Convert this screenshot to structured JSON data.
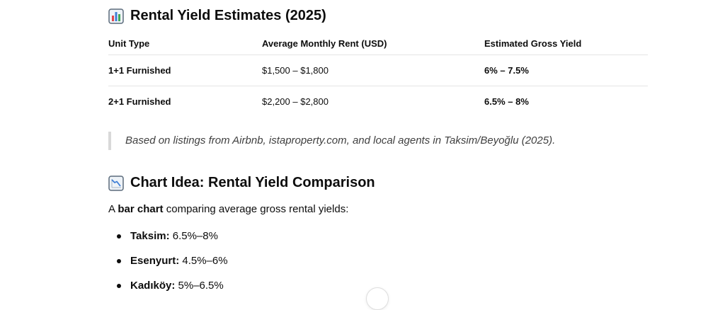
{
  "section1": {
    "title": "Rental Yield Estimates (2025)",
    "icon": "bar-chart-emoji-icon"
  },
  "table": {
    "headers": [
      "Unit Type",
      "Average Monthly Rent (USD)",
      "Estimated Gross Yield"
    ],
    "rows": [
      {
        "unit": "1+1 Furnished",
        "rent": "$1,500 – $1,800",
        "yield": "6% – 7.5%"
      },
      {
        "unit": "2+1 Furnished",
        "rent": "$2,200 – $2,800",
        "yield": "6.5% – 8%"
      }
    ]
  },
  "note": "Based on listings from Airbnb, istaproperty.com, and local agents in Taksim/Beyoğlu (2025).",
  "section2": {
    "title": "Chart Idea: Rental Yield Comparison",
    "icon": "chart-decreasing-emoji-icon"
  },
  "intro": {
    "before": "A ",
    "bold": "bar chart",
    "after": " comparing average gross rental yields:"
  },
  "yields": [
    {
      "name": "Taksim:",
      "value": " 6.5%–8%"
    },
    {
      "name": "Esenyurt:",
      "value": " 4.5%–6%"
    },
    {
      "name": "Kadıköy:",
      "value": " 5%–6.5%"
    }
  ],
  "colors": {
    "text": "#0d0d0d",
    "quote_border": "#d9d9d9",
    "divider": "#e5e5e5",
    "emoji_frame": "#5b6b7b",
    "emoji_bg": "#eef3f8",
    "bar_red": "#e0464c",
    "bar_blue": "#3f7fd6",
    "bar_green": "#41a85a"
  }
}
